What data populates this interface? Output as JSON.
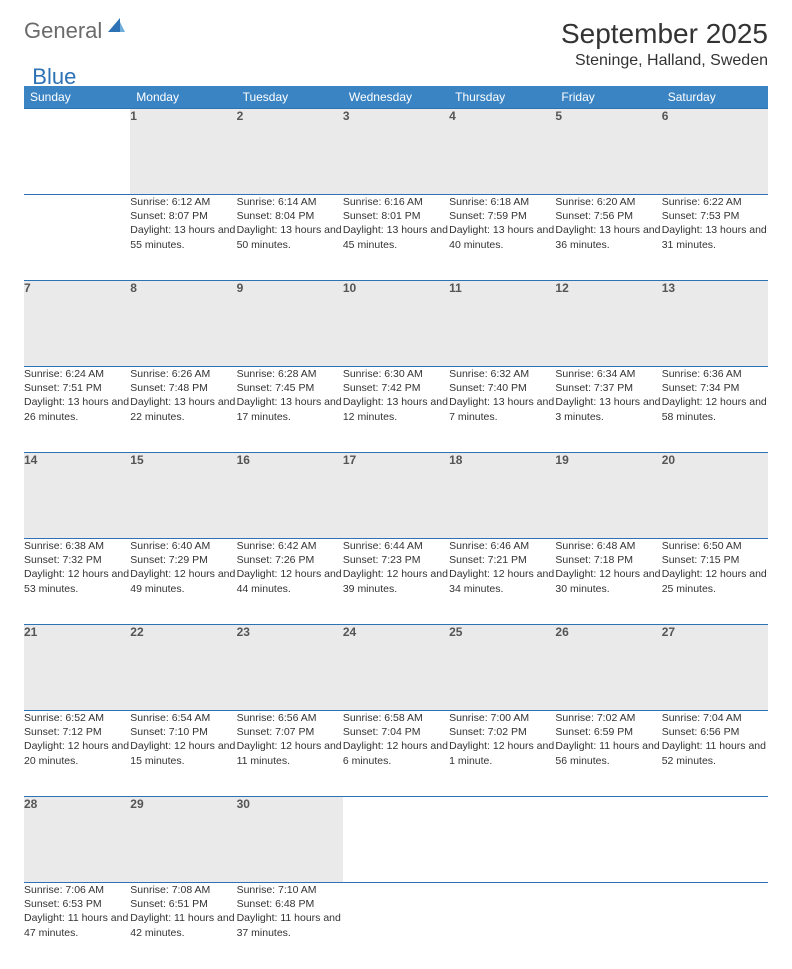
{
  "logo": {
    "general": "General",
    "blue": "Blue"
  },
  "title": "September 2025",
  "location": "Steninge, Halland, Sweden",
  "colors": {
    "header_bg": "#3b84c4",
    "border": "#2d72b5",
    "daynum_bg": "#eaeaea",
    "text": "#333333",
    "logo_gray": "#6b6b6b",
    "logo_blue": "#2d72b5"
  },
  "day_headers": [
    "Sunday",
    "Monday",
    "Tuesday",
    "Wednesday",
    "Thursday",
    "Friday",
    "Saturday"
  ],
  "weeks": [
    {
      "nums": [
        "",
        "1",
        "2",
        "3",
        "4",
        "5",
        "6"
      ],
      "cells": [
        {},
        {
          "sr": "Sunrise: 6:12 AM",
          "ss": "Sunset: 8:07 PM",
          "dl": "Daylight: 13 hours and 55 minutes."
        },
        {
          "sr": "Sunrise: 6:14 AM",
          "ss": "Sunset: 8:04 PM",
          "dl": "Daylight: 13 hours and 50 minutes."
        },
        {
          "sr": "Sunrise: 6:16 AM",
          "ss": "Sunset: 8:01 PM",
          "dl": "Daylight: 13 hours and 45 minutes."
        },
        {
          "sr": "Sunrise: 6:18 AM",
          "ss": "Sunset: 7:59 PM",
          "dl": "Daylight: 13 hours and 40 minutes."
        },
        {
          "sr": "Sunrise: 6:20 AM",
          "ss": "Sunset: 7:56 PM",
          "dl": "Daylight: 13 hours and 36 minutes."
        },
        {
          "sr": "Sunrise: 6:22 AM",
          "ss": "Sunset: 7:53 PM",
          "dl": "Daylight: 13 hours and 31 minutes."
        }
      ]
    },
    {
      "nums": [
        "7",
        "8",
        "9",
        "10",
        "11",
        "12",
        "13"
      ],
      "cells": [
        {
          "sr": "Sunrise: 6:24 AM",
          "ss": "Sunset: 7:51 PM",
          "dl": "Daylight: 13 hours and 26 minutes."
        },
        {
          "sr": "Sunrise: 6:26 AM",
          "ss": "Sunset: 7:48 PM",
          "dl": "Daylight: 13 hours and 22 minutes."
        },
        {
          "sr": "Sunrise: 6:28 AM",
          "ss": "Sunset: 7:45 PM",
          "dl": "Daylight: 13 hours and 17 minutes."
        },
        {
          "sr": "Sunrise: 6:30 AM",
          "ss": "Sunset: 7:42 PM",
          "dl": "Daylight: 13 hours and 12 minutes."
        },
        {
          "sr": "Sunrise: 6:32 AM",
          "ss": "Sunset: 7:40 PM",
          "dl": "Daylight: 13 hours and 7 minutes."
        },
        {
          "sr": "Sunrise: 6:34 AM",
          "ss": "Sunset: 7:37 PM",
          "dl": "Daylight: 13 hours and 3 minutes."
        },
        {
          "sr": "Sunrise: 6:36 AM",
          "ss": "Sunset: 7:34 PM",
          "dl": "Daylight: 12 hours and 58 minutes."
        }
      ]
    },
    {
      "nums": [
        "14",
        "15",
        "16",
        "17",
        "18",
        "19",
        "20"
      ],
      "cells": [
        {
          "sr": "Sunrise: 6:38 AM",
          "ss": "Sunset: 7:32 PM",
          "dl": "Daylight: 12 hours and 53 minutes."
        },
        {
          "sr": "Sunrise: 6:40 AM",
          "ss": "Sunset: 7:29 PM",
          "dl": "Daylight: 12 hours and 49 minutes."
        },
        {
          "sr": "Sunrise: 6:42 AM",
          "ss": "Sunset: 7:26 PM",
          "dl": "Daylight: 12 hours and 44 minutes."
        },
        {
          "sr": "Sunrise: 6:44 AM",
          "ss": "Sunset: 7:23 PM",
          "dl": "Daylight: 12 hours and 39 minutes."
        },
        {
          "sr": "Sunrise: 6:46 AM",
          "ss": "Sunset: 7:21 PM",
          "dl": "Daylight: 12 hours and 34 minutes."
        },
        {
          "sr": "Sunrise: 6:48 AM",
          "ss": "Sunset: 7:18 PM",
          "dl": "Daylight: 12 hours and 30 minutes."
        },
        {
          "sr": "Sunrise: 6:50 AM",
          "ss": "Sunset: 7:15 PM",
          "dl": "Daylight: 12 hours and 25 minutes."
        }
      ]
    },
    {
      "nums": [
        "21",
        "22",
        "23",
        "24",
        "25",
        "26",
        "27"
      ],
      "cells": [
        {
          "sr": "Sunrise: 6:52 AM",
          "ss": "Sunset: 7:12 PM",
          "dl": "Daylight: 12 hours and 20 minutes."
        },
        {
          "sr": "Sunrise: 6:54 AM",
          "ss": "Sunset: 7:10 PM",
          "dl": "Daylight: 12 hours and 15 minutes."
        },
        {
          "sr": "Sunrise: 6:56 AM",
          "ss": "Sunset: 7:07 PM",
          "dl": "Daylight: 12 hours and 11 minutes."
        },
        {
          "sr": "Sunrise: 6:58 AM",
          "ss": "Sunset: 7:04 PM",
          "dl": "Daylight: 12 hours and 6 minutes."
        },
        {
          "sr": "Sunrise: 7:00 AM",
          "ss": "Sunset: 7:02 PM",
          "dl": "Daylight: 12 hours and 1 minute."
        },
        {
          "sr": "Sunrise: 7:02 AM",
          "ss": "Sunset: 6:59 PM",
          "dl": "Daylight: 11 hours and 56 minutes."
        },
        {
          "sr": "Sunrise: 7:04 AM",
          "ss": "Sunset: 6:56 PM",
          "dl": "Daylight: 11 hours and 52 minutes."
        }
      ]
    },
    {
      "nums": [
        "28",
        "29",
        "30",
        "",
        "",
        "",
        ""
      ],
      "cells": [
        {
          "sr": "Sunrise: 7:06 AM",
          "ss": "Sunset: 6:53 PM",
          "dl": "Daylight: 11 hours and 47 minutes."
        },
        {
          "sr": "Sunrise: 7:08 AM",
          "ss": "Sunset: 6:51 PM",
          "dl": "Daylight: 11 hours and 42 minutes."
        },
        {
          "sr": "Sunrise: 7:10 AM",
          "ss": "Sunset: 6:48 PM",
          "dl": "Daylight: 11 hours and 37 minutes."
        },
        {},
        {},
        {},
        {}
      ]
    }
  ]
}
